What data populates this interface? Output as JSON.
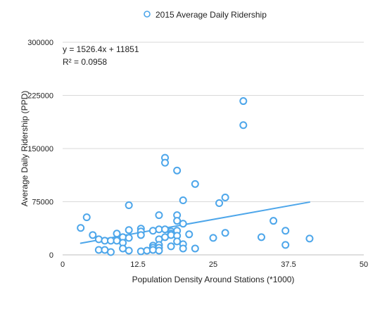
{
  "chart_data": {
    "type": "scatter",
    "title": "",
    "xlabel": "Population Density Around Stations (*1000)",
    "ylabel": "Average Daily Ridership (PPD)",
    "xlim": [
      0,
      50
    ],
    "ylim": [
      0,
      300000
    ],
    "x_ticks": [
      0,
      12.5,
      25,
      37.5,
      50
    ],
    "x_tick_labels": [
      "0",
      "12.5",
      "25",
      "37.5",
      "50"
    ],
    "y_ticks": [
      0,
      75000,
      150000,
      225000,
      300000
    ],
    "y_tick_labels": [
      "0",
      "75000",
      "150000",
      "225000",
      "300000"
    ],
    "grid": "horizontal",
    "legend_position": "top-center",
    "series": [
      {
        "name": "2015 Average Daily Ridership",
        "color": "#4da6ea",
        "x": [
          3,
          4,
          5,
          6,
          6,
          7,
          7,
          8,
          8,
          9,
          9,
          10,
          10,
          10,
          11,
          11,
          11,
          11,
          13,
          13,
          13,
          13,
          14,
          15,
          15,
          15,
          15,
          16,
          16,
          16,
          16,
          16,
          16,
          17,
          17,
          17,
          17,
          18,
          18,
          18,
          18,
          19,
          19,
          19,
          19,
          19,
          19,
          20,
          20,
          20,
          20,
          21,
          22,
          22,
          25,
          26,
          27,
          27,
          30,
          30,
          33,
          35,
          37,
          37,
          41
        ],
        "y": [
          38000,
          53000,
          28000,
          22000,
          7000,
          20000,
          7000,
          20000,
          4000,
          30000,
          20000,
          25000,
          17000,
          9000,
          70000,
          35000,
          24000,
          6000,
          37000,
          33000,
          28000,
          5000,
          6000,
          34000,
          13000,
          10000,
          7000,
          56000,
          36000,
          22000,
          14000,
          10000,
          6000,
          137000,
          130000,
          36000,
          25000,
          33000,
          30000,
          28000,
          12000,
          119000,
          56000,
          48000,
          34000,
          27000,
          19000,
          77000,
          44000,
          15000,
          9000,
          29000,
          100000,
          9000,
          24000,
          73000,
          81000,
          31000,
          217000,
          183000,
          25000,
          48000,
          34000,
          14000,
          23000
        ]
      }
    ],
    "trendline": {
      "type": "linear",
      "slope": 1526.4,
      "intercept": 11851,
      "x_range": [
        3,
        41
      ],
      "equation_label": "y = 1526.4x + 11851",
      "r2_label": "R² = 0.0958"
    }
  }
}
